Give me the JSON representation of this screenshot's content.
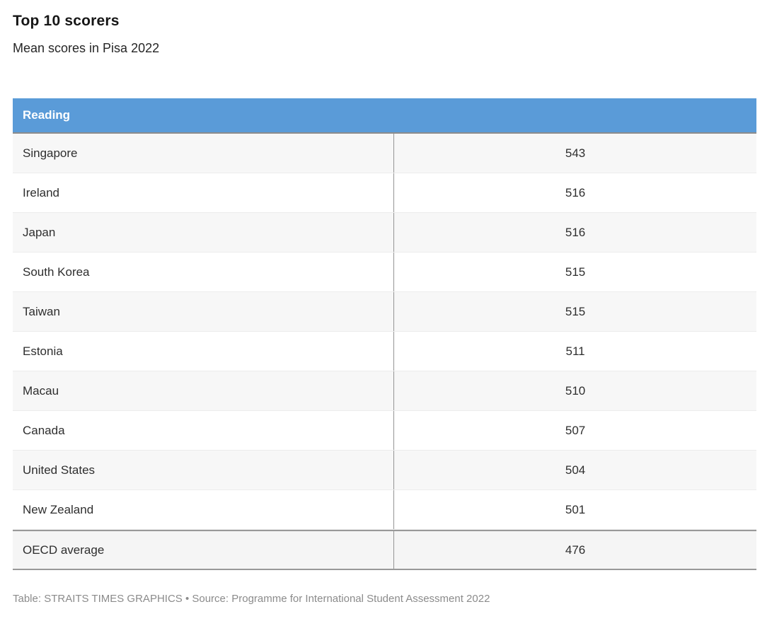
{
  "title": "Top 10 scorers",
  "subtitle": "Mean scores in Pisa 2022",
  "table": {
    "header": "Reading",
    "rows": [
      {
        "label": "Singapore",
        "value": "543"
      },
      {
        "label": "Ireland",
        "value": "516"
      },
      {
        "label": "Japan",
        "value": "516"
      },
      {
        "label": "South Korea",
        "value": "515"
      },
      {
        "label": "Taiwan",
        "value": "515"
      },
      {
        "label": "Estonia",
        "value": "511"
      },
      {
        "label": "Macau",
        "value": "510"
      },
      {
        "label": "Canada",
        "value": "507"
      },
      {
        "label": "United States",
        "value": "504"
      },
      {
        "label": "New Zealand",
        "value": "501"
      }
    ],
    "summary": {
      "label": "OECD average",
      "value": "476"
    }
  },
  "footer": "Table: STRAITS TIMES GRAPHICS • Source: Programme for International Student Assessment 2022",
  "colors": {
    "header_bg": "#5A9BD8",
    "header_text": "#ffffff",
    "header_border": "#8c8c8c",
    "stripe_bg": "#f7f7f7",
    "row_border": "#ececec",
    "column_divider": "#949494",
    "summary_border": "#999999",
    "footer_text": "#8b8b8b"
  },
  "chart_data": {
    "type": "table",
    "title": "Top 10 scorers",
    "subtitle": "Mean scores in Pisa 2022",
    "column_header": "Reading",
    "categories": [
      "Singapore",
      "Ireland",
      "Japan",
      "South Korea",
      "Taiwan",
      "Estonia",
      "Macau",
      "Canada",
      "United States",
      "New Zealand",
      "OECD average"
    ],
    "values": [
      543,
      516,
      516,
      515,
      515,
      511,
      510,
      507,
      504,
      501,
      476
    ],
    "source": "Programme for International Student Assessment 2022",
    "layout_hints": {
      "zebra_striping": true,
      "value_alignment": "center",
      "summary_row_emphasized": true
    }
  }
}
